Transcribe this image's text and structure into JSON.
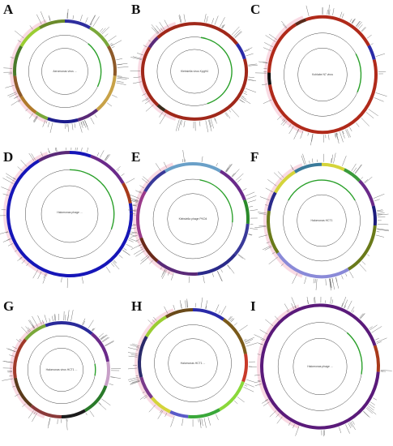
{
  "panels": {
    "A": {
      "letter": "A",
      "title": "Aeromonas virus ...",
      "size": "",
      "segments": [
        [
          "#2e2e9e",
          0,
          30
        ],
        [
          "#7aa83a",
          30,
          60
        ],
        [
          "#8e5a2a",
          60,
          95
        ],
        [
          "#c8a248",
          95,
          140
        ],
        [
          "#5a2a78",
          140,
          165
        ],
        [
          "#1c1c8c",
          165,
          200
        ],
        [
          "#7aa83a",
          200,
          215
        ],
        [
          "#b07a2a",
          215,
          240
        ],
        [
          "#8e5a2a",
          240,
          265
        ],
        [
          "#4a7a2a",
          265,
          300
        ],
        [
          "#9acd32",
          300,
          330
        ],
        [
          "#6a8a2a",
          330,
          360
        ]
      ]
    },
    "B": {
      "letter": "B",
      "title": "Klebsiella virus KpgH4",
      "size": "",
      "segments": [
        [
          "#a0281a",
          0,
          55
        ],
        [
          "#2a2aa8",
          55,
          75
        ],
        [
          "#a0281a",
          75,
          215
        ],
        [
          "#3a2a1a",
          215,
          225
        ],
        [
          "#a0281a",
          225,
          300
        ],
        [
          "#5a2a78",
          300,
          315
        ],
        [
          "#a0281a",
          315,
          360
        ]
      ]
    },
    "C": {
      "letter": "C",
      "title": "Kohlabe N7 virus",
      "size": "",
      "segments": [
        [
          "#b02a1a",
          0,
          60
        ],
        [
          "#2a2aa8",
          60,
          75
        ],
        [
          "#b02a1a",
          75,
          260
        ],
        [
          "#101010",
          260,
          272
        ],
        [
          "#b02a1a",
          272,
          330
        ],
        [
          "#5a2a1a",
          330,
          342
        ],
        [
          "#b02a1a",
          342,
          360
        ]
      ]
    },
    "D": {
      "letter": "D",
      "title": "Halomonas phage ...",
      "size": "",
      "segments": [
        [
          "#1616b8",
          0,
          20
        ],
        [
          "#6a2a8a",
          20,
          60
        ],
        [
          "#a83a1a",
          60,
          80
        ],
        [
          "#1616b8",
          80,
          330
        ],
        [
          "#5a2a78",
          330,
          360
        ]
      ]
    },
    "E": {
      "letter": "E",
      "title": "Klebsiella phage PKO4",
      "size": "",
      "segments": [
        [
          "#6aa0c8",
          0,
          30
        ],
        [
          "#6a2a8a",
          30,
          70
        ],
        [
          "#2a8a2a",
          70,
          95
        ],
        [
          "#3a3a9a",
          95,
          130
        ],
        [
          "#2a2a8a",
          130,
          175
        ],
        [
          "#5a2a78",
          175,
          220
        ],
        [
          "#6a2a1a",
          220,
          250
        ],
        [
          "#9a3a8a",
          250,
          300
        ],
        [
          "#3a3a9a",
          300,
          330
        ],
        [
          "#6aa0c8",
          330,
          360
        ]
      ]
    },
    "F": {
      "letter": "F",
      "title": "Halomonas HCT1",
      "size": "",
      "segments": [
        [
          "#d4d43a",
          0,
          25
        ],
        [
          "#3a9a3a",
          25,
          45
        ],
        [
          "#6a2a8a",
          45,
          75
        ],
        [
          "#1c1c7c",
          75,
          95
        ],
        [
          "#6a7a1a",
          95,
          150
        ],
        [
          "#8a8ad8",
          150,
          235
        ],
        [
          "#6a7a1a",
          235,
          280
        ],
        [
          "#2a2a8a",
          280,
          300
        ],
        [
          "#d4d43a",
          300,
          330
        ],
        [
          "#3a7a9a",
          330,
          360
        ]
      ]
    },
    "G": {
      "letter": "G",
      "title": "Halomonas virus HCT1 ...",
      "size": "",
      "segments": [
        [
          "#2a2a9a",
          0,
          40
        ],
        [
          "#6a2a8a",
          40,
          80
        ],
        [
          "#c8a0c8",
          80,
          110
        ],
        [
          "#2a7a2a",
          110,
          150
        ],
        [
          "#1c1c1c",
          150,
          180
        ],
        [
          "#8a3a3a",
          180,
          220
        ],
        [
          "#5a3a1a",
          220,
          260
        ],
        [
          "#a03a2a",
          260,
          310
        ],
        [
          "#7aa83a",
          310,
          340
        ],
        [
          "#2a2a9a",
          340,
          360
        ]
      ]
    },
    "H": {
      "letter": "H",
      "title": "Halomonas HCT1 ...",
      "size": "",
      "segments": [
        [
          "#2a2aa8",
          0,
          35
        ],
        [
          "#7a5a1a",
          35,
          80
        ],
        [
          "#c83a2a",
          80,
          110
        ],
        [
          "#8ad83a",
          110,
          150
        ],
        [
          "#3aa83a",
          150,
          185
        ],
        [
          "#5a5ac8",
          185,
          205
        ],
        [
          "#d4d43a",
          205,
          230
        ],
        [
          "#7a3a8a",
          230,
          255
        ],
        [
          "#2a2a6a",
          255,
          300
        ],
        [
          "#9acd32",
          300,
          330
        ],
        [
          "#6a4a1a",
          330,
          360
        ]
      ]
    },
    "I": {
      "letter": "I",
      "title": "Halomonas phage ...",
      "size": "",
      "segments": [
        [
          "#5a1a7a",
          0,
          70
        ],
        [
          "#a83a1a",
          70,
          95
        ],
        [
          "#5a1a7a",
          95,
          360
        ]
      ]
    }
  },
  "colors": {
    "inner_ring": "#444444",
    "gene_arc": "#2aa02a",
    "tick": "#555555",
    "halo": "#f4b6c8"
  }
}
